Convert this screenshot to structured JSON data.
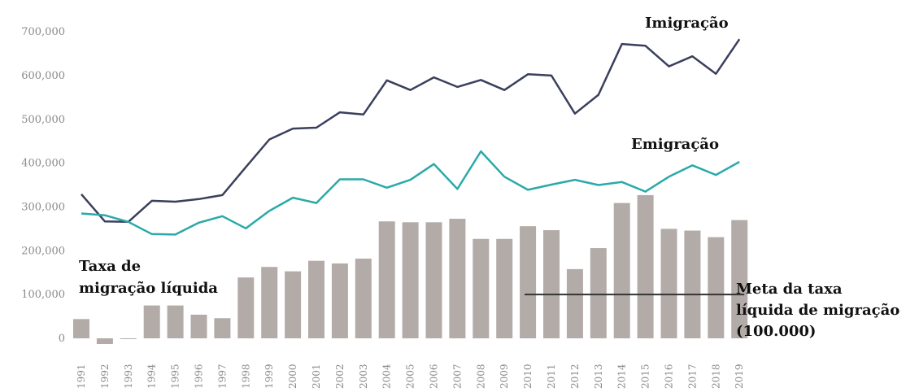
{
  "chart_data": {
    "type": "bar",
    "categories": [
      "1991",
      "1992",
      "1993",
      "1994",
      "1995",
      "1996",
      "1997",
      "1998",
      "1999",
      "2000",
      "2001",
      "2002",
      "2003",
      "2004",
      "2005",
      "2006",
      "2007",
      "2008",
      "2009",
      "2010",
      "2011",
      "2012",
      "2013",
      "2014",
      "2015",
      "2016",
      "2017",
      "2018",
      "2019"
    ],
    "series": [
      {
        "name": "Taxa de migração líquida",
        "kind": "bar",
        "color": "#b3aba7",
        "values": [
          44000,
          -13000,
          -1000,
          75000,
          75000,
          54000,
          46000,
          139000,
          163000,
          153000,
          177000,
          171000,
          182000,
          267000,
          265000,
          265000,
          273000,
          227000,
          227000,
          256000,
          247000,
          158000,
          206000,
          309000,
          327000,
          250000,
          246000,
          231000,
          270000
        ]
      },
      {
        "name": "Imigração",
        "kind": "line",
        "color": "#3a3f5c",
        "values": [
          329000,
          267000,
          266000,
          314000,
          312000,
          318000,
          327000,
          391000,
          454000,
          479000,
          481000,
          516000,
          511000,
          589000,
          567000,
          596000,
          574000,
          590000,
          567000,
          603000,
          600000,
          513000,
          556000,
          672000,
          668000,
          621000,
          644000,
          604000,
          683000
        ]
      },
      {
        "name": "Emigração",
        "kind": "line",
        "color": "#2aa9a9",
        "values": [
          285000,
          281000,
          266000,
          238000,
          237000,
          264000,
          279000,
          251000,
          291000,
          321000,
          309000,
          363000,
          363000,
          344000,
          362000,
          398000,
          341000,
          427000,
          369000,
          339000,
          351000,
          362000,
          350000,
          357000,
          335000,
          369000,
          395000,
          373000,
          403000
        ]
      }
    ],
    "target": {
      "label_lines": [
        "Meta da taxa",
        "líquida de migração",
        "(100.000)"
      ],
      "value": 100000,
      "from": "2010",
      "to": "2019",
      "color": "#333333"
    },
    "net_label_lines": [
      "Taxa de",
      "migração líquida"
    ],
    "y_ticks": [
      {
        "value": 0,
        "label": "0"
      },
      {
        "value": 100000,
        "label": "100,000"
      },
      {
        "value": 200000,
        "label": "200,000"
      },
      {
        "value": 300000,
        "label": "300,000"
      },
      {
        "value": 400000,
        "label": "400,000"
      },
      {
        "value": 500000,
        "label": "500,000"
      },
      {
        "value": 600000,
        "label": "600,000"
      },
      {
        "value": 700000,
        "label": "700,000"
      }
    ],
    "ylim": [
      -20000,
      720000
    ],
    "grid": false,
    "legend": "none (direct labels)"
  }
}
